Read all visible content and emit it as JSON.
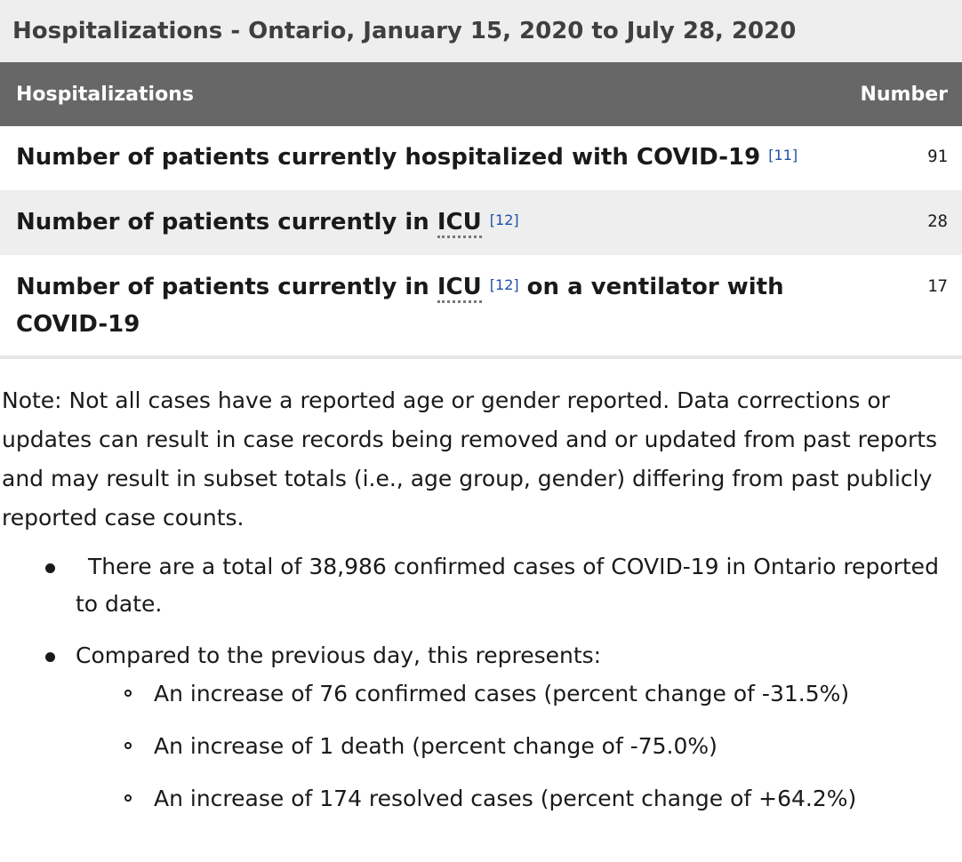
{
  "table": {
    "caption": "Hospitalizations - Ontario, January 15, 2020 to July 28, 2020",
    "headers": [
      "Hospitalizations",
      "Number"
    ],
    "rows": [
      {
        "label_pre": "Number of patients currently hospitalized with COVID-19",
        "abbr": "",
        "ref": "[11]",
        "label_post": "",
        "value": "91"
      },
      {
        "label_pre": "Number of patients currently in ",
        "abbr": "ICU",
        "ref": "[12]",
        "label_post": "",
        "value": "28"
      },
      {
        "label_pre": "Number of patients currently in ",
        "abbr": "ICU",
        "ref": "[12]",
        "label_post": " on a ventilator with COVID-19",
        "value": "17"
      }
    ]
  },
  "note": "Note: Not all cases have a reported age or gender reported. Data corrections or updates can result in case records being removed and or updated from past reports and may result in subset totals (i.e., age group, gender) differing from past publicly reported case counts.",
  "bullets": [
    {
      "text": "There are a total of 38,986 confirmed cases of COVID-19 in Ontario reported to date."
    },
    {
      "text": "Compared to the previous day, this represents:",
      "sub": [
        "An increase of 76 confirmed cases (percent change of -31.5%)",
        "An increase of 1 death (percent change of -75.0%)",
        "An increase of 174 resolved cases (percent change of +64.2%)"
      ]
    }
  ]
}
